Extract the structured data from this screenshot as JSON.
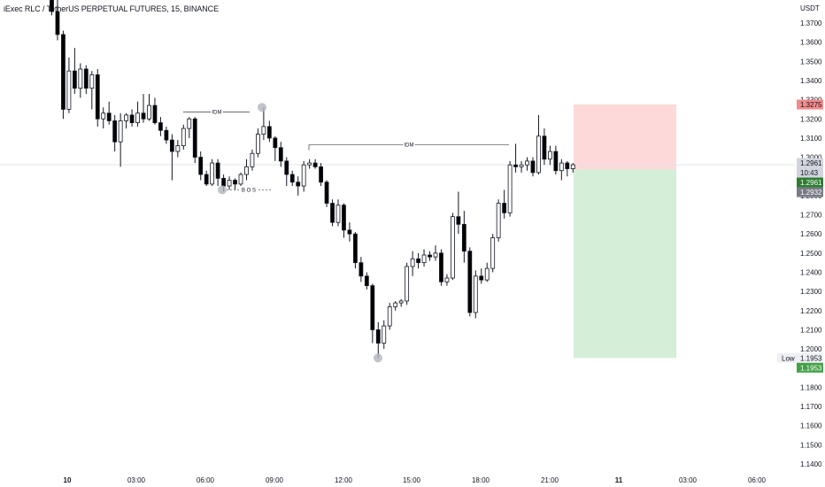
{
  "chart": {
    "title": "iExec RLC / TetherUS PERPETUAL FUTURES, 15, BINANCE",
    "currency": "USDT",
    "price_ticks": [
      "1.3700",
      "1.3600",
      "1.3500",
      "1.3400",
      "1.3300",
      "1.3200",
      "1.3100",
      "1.3000",
      "1.2900",
      "1.2800",
      "1.2700",
      "1.2600",
      "1.2500",
      "1.2400",
      "1.2300",
      "1.2200",
      "1.2100",
      "1.2000",
      "1.1900",
      "1.1800",
      "1.1700",
      "1.1600",
      "1.1500",
      "1.1400"
    ],
    "time_ticks": [
      {
        "label": "10",
        "bold": true
      },
      {
        "label": "03:00",
        "bold": false
      },
      {
        "label": "06:00",
        "bold": false
      },
      {
        "label": "09:00",
        "bold": false
      },
      {
        "label": "12:00",
        "bold": false
      },
      {
        "label": "15:00",
        "bold": false
      },
      {
        "label": "18:00",
        "bold": false
      },
      {
        "label": "21:00",
        "bold": false
      },
      {
        "label": "11",
        "bold": true
      },
      {
        "label": "03:00",
        "bold": false
      },
      {
        "label": "06:00",
        "bold": false
      }
    ],
    "tags": {
      "target": {
        "value": "1.3275",
        "bg": "#f28b8b",
        "fg": "#131722"
      },
      "last_price": {
        "value": "1.2961",
        "bg": "#d1d4dc",
        "fg": "#131722"
      },
      "countdown": {
        "value": "10:43",
        "bg": "#d1d4dc",
        "fg": "#131722"
      },
      "entry": {
        "value": "1.2961",
        "bg": "#2e7d32",
        "fg": "#ffffff"
      },
      "stop": {
        "value": "1.2932",
        "bg": "#787b86",
        "fg": "#ffffff"
      },
      "low_caption": "Low",
      "low_value": "1.1953",
      "low_tag": {
        "value": "1.1953",
        "bg": "#43a047",
        "fg": "#ffffff"
      }
    },
    "annotations": {
      "idm_1": "IDM",
      "bos": "B O S",
      "idm_2": "IDM"
    },
    "colors": {
      "bull": "#ffffff",
      "bear": "#000000",
      "wick": "#131722",
      "risk_zone": "#fdd9d9",
      "reward_zone": "#d5eed7",
      "marker": "#b2b5be"
    },
    "drawing": {
      "position_type": "short",
      "entry": 1.2936,
      "take_profit": 1.1953,
      "stop_loss": 1.3275
    }
  },
  "chart_data": {
    "type": "candlestick",
    "title": "iExec RLC / TetherUS PERPETUAL FUTURES, 15, BINANCE",
    "timeframe": "15",
    "ylim": [
      1.14,
      1.378
    ],
    "candles": [
      {
        "t": "09 23:45",
        "o": 1.385,
        "h": 1.39,
        "l": 1.374,
        "c": 1.376
      },
      {
        "t": "10 00:00",
        "o": 1.376,
        "h": 1.383,
        "l": 1.361,
        "c": 1.364
      },
      {
        "t": "10 00:15",
        "o": 1.364,
        "h": 1.366,
        "l": 1.32,
        "c": 1.325
      },
      {
        "t": "10 00:30",
        "o": 1.325,
        "h": 1.352,
        "l": 1.323,
        "c": 1.345
      },
      {
        "t": "10 00:45",
        "o": 1.345,
        "h": 1.357,
        "l": 1.333,
        "c": 1.336
      },
      {
        "t": "10 01:00",
        "o": 1.336,
        "h": 1.349,
        "l": 1.331,
        "c": 1.346
      },
      {
        "t": "10 01:15",
        "o": 1.346,
        "h": 1.348,
        "l": 1.333,
        "c": 1.336
      },
      {
        "t": "10 01:30",
        "o": 1.336,
        "h": 1.345,
        "l": 1.325,
        "c": 1.343
      },
      {
        "t": "10 01:45",
        "o": 1.343,
        "h": 1.346,
        "l": 1.316,
        "c": 1.32
      },
      {
        "t": "10 02:00",
        "o": 1.32,
        "h": 1.326,
        "l": 1.315,
        "c": 1.323
      },
      {
        "t": "10 02:15",
        "o": 1.323,
        "h": 1.329,
        "l": 1.317,
        "c": 1.319
      },
      {
        "t": "10 02:30",
        "o": 1.319,
        "h": 1.322,
        "l": 1.303,
        "c": 1.308
      },
      {
        "t": "10 02:45",
        "o": 1.308,
        "h": 1.323,
        "l": 1.295,
        "c": 1.319
      },
      {
        "t": "10 03:00",
        "o": 1.319,
        "h": 1.323,
        "l": 1.315,
        "c": 1.322
      },
      {
        "t": "10 03:15",
        "o": 1.322,
        "h": 1.325,
        "l": 1.316,
        "c": 1.318
      },
      {
        "t": "10 03:30",
        "o": 1.318,
        "h": 1.329,
        "l": 1.316,
        "c": 1.323
      },
      {
        "t": "10 03:45",
        "o": 1.323,
        "h": 1.333,
        "l": 1.318,
        "c": 1.32
      },
      {
        "t": "10 04:00",
        "o": 1.32,
        "h": 1.333,
        "l": 1.319,
        "c": 1.327
      },
      {
        "t": "10 04:15",
        "o": 1.327,
        "h": 1.331,
        "l": 1.317,
        "c": 1.318
      },
      {
        "t": "10 04:30",
        "o": 1.318,
        "h": 1.321,
        "l": 1.311,
        "c": 1.314
      },
      {
        "t": "10 04:45",
        "o": 1.314,
        "h": 1.316,
        "l": 1.307,
        "c": 1.309
      },
      {
        "t": "10 05:00",
        "o": 1.309,
        "h": 1.312,
        "l": 1.288,
        "c": 1.303
      },
      {
        "t": "10 05:15",
        "o": 1.303,
        "h": 1.309,
        "l": 1.3,
        "c": 1.306
      },
      {
        "t": "10 05:30",
        "o": 1.306,
        "h": 1.317,
        "l": 1.304,
        "c": 1.315
      },
      {
        "t": "10 05:45",
        "o": 1.315,
        "h": 1.321,
        "l": 1.31,
        "c": 1.32
      },
      {
        "t": "10 06:00",
        "o": 1.32,
        "h": 1.321,
        "l": 1.297,
        "c": 1.3
      },
      {
        "t": "10 06:15",
        "o": 1.3,
        "h": 1.303,
        "l": 1.288,
        "c": 1.291
      },
      {
        "t": "10 06:30",
        "o": 1.291,
        "h": 1.293,
        "l": 1.285,
        "c": 1.286
      },
      {
        "t": "10 06:45",
        "o": 1.286,
        "h": 1.299,
        "l": 1.285,
        "c": 1.297
      },
      {
        "t": "10 07:00",
        "o": 1.297,
        "h": 1.299,
        "l": 1.285,
        "c": 1.289
      },
      {
        "t": "10 07:15",
        "o": 1.289,
        "h": 1.291,
        "l": 1.282,
        "c": 1.285
      },
      {
        "t": "10 07:30",
        "o": 1.285,
        "h": 1.29,
        "l": 1.283,
        "c": 1.288
      },
      {
        "t": "10 07:45",
        "o": 1.288,
        "h": 1.289,
        "l": 1.283,
        "c": 1.286
      },
      {
        "t": "10 08:00",
        "o": 1.286,
        "h": 1.292,
        "l": 1.285,
        "c": 1.291
      },
      {
        "t": "10 08:15",
        "o": 1.291,
        "h": 1.299,
        "l": 1.288,
        "c": 1.295
      },
      {
        "t": "10 08:30",
        "o": 1.295,
        "h": 1.304,
        "l": 1.293,
        "c": 1.302
      },
      {
        "t": "10 08:45",
        "o": 1.302,
        "h": 1.315,
        "l": 1.3,
        "c": 1.312
      },
      {
        "t": "10 09:00",
        "o": 1.312,
        "h": 1.326,
        "l": 1.309,
        "c": 1.316
      },
      {
        "t": "10 09:15",
        "o": 1.316,
        "h": 1.319,
        "l": 1.308,
        "c": 1.31
      },
      {
        "t": "10 09:30",
        "o": 1.31,
        "h": 1.311,
        "l": 1.298,
        "c": 1.305
      },
      {
        "t": "10 09:45",
        "o": 1.305,
        "h": 1.308,
        "l": 1.295,
        "c": 1.298
      },
      {
        "t": "10 10:00",
        "o": 1.298,
        "h": 1.3,
        "l": 1.285,
        "c": 1.291
      },
      {
        "t": "10 10:15",
        "o": 1.291,
        "h": 1.293,
        "l": 1.285,
        "c": 1.287
      },
      {
        "t": "10 10:30",
        "o": 1.287,
        "h": 1.29,
        "l": 1.28,
        "c": 1.285
      },
      {
        "t": "10 10:45",
        "o": 1.285,
        "h": 1.298,
        "l": 1.282,
        "c": 1.296
      },
      {
        "t": "10 11:00",
        "o": 1.296,
        "h": 1.299,
        "l": 1.294,
        "c": 1.297
      },
      {
        "t": "10 11:15",
        "o": 1.297,
        "h": 1.299,
        "l": 1.294,
        "c": 1.295
      },
      {
        "t": "10 11:30",
        "o": 1.295,
        "h": 1.297,
        "l": 1.285,
        "c": 1.287
      },
      {
        "t": "10 11:45",
        "o": 1.287,
        "h": 1.288,
        "l": 1.274,
        "c": 1.276
      },
      {
        "t": "10 12:00",
        "o": 1.276,
        "h": 1.278,
        "l": 1.264,
        "c": 1.266
      },
      {
        "t": "10 12:15",
        "o": 1.266,
        "h": 1.278,
        "l": 1.264,
        "c": 1.275
      },
      {
        "t": "10 12:30",
        "o": 1.275,
        "h": 1.276,
        "l": 1.258,
        "c": 1.262
      },
      {
        "t": "10 12:45",
        "o": 1.262,
        "h": 1.266,
        "l": 1.256,
        "c": 1.26
      },
      {
        "t": "10 13:00",
        "o": 1.26,
        "h": 1.261,
        "l": 1.242,
        "c": 1.245
      },
      {
        "t": "10 13:15",
        "o": 1.245,
        "h": 1.248,
        "l": 1.235,
        "c": 1.238
      },
      {
        "t": "10 13:30",
        "o": 1.238,
        "h": 1.24,
        "l": 1.231,
        "c": 1.233
      },
      {
        "t": "10 13:45",
        "o": 1.233,
        "h": 1.234,
        "l": 1.203,
        "c": 1.21
      },
      {
        "t": "10 14:00",
        "o": 1.21,
        "h": 1.214,
        "l": 1.1953,
        "c": 1.203
      },
      {
        "t": "10 14:15",
        "o": 1.203,
        "h": 1.215,
        "l": 1.2,
        "c": 1.212
      },
      {
        "t": "10 14:30",
        "o": 1.212,
        "h": 1.224,
        "l": 1.21,
        "c": 1.222
      },
      {
        "t": "10 14:45",
        "o": 1.222,
        "h": 1.225,
        "l": 1.22,
        "c": 1.224
      },
      {
        "t": "10 15:00",
        "o": 1.224,
        "h": 1.226,
        "l": 1.222,
        "c": 1.225
      },
      {
        "t": "10 15:15",
        "o": 1.225,
        "h": 1.245,
        "l": 1.223,
        "c": 1.243
      },
      {
        "t": "10 15:30",
        "o": 1.243,
        "h": 1.251,
        "l": 1.238,
        "c": 1.247
      },
      {
        "t": "10 15:45",
        "o": 1.247,
        "h": 1.25,
        "l": 1.242,
        "c": 1.245
      },
      {
        "t": "10 16:00",
        "o": 1.245,
        "h": 1.252,
        "l": 1.243,
        "c": 1.249
      },
      {
        "t": "10 16:15",
        "o": 1.249,
        "h": 1.251,
        "l": 1.246,
        "c": 1.248
      },
      {
        "t": "10 16:30",
        "o": 1.248,
        "h": 1.254,
        "l": 1.246,
        "c": 1.25
      },
      {
        "t": "10 16:45",
        "o": 1.25,
        "h": 1.252,
        "l": 1.233,
        "c": 1.235
      },
      {
        "t": "10 17:00",
        "o": 1.235,
        "h": 1.239,
        "l": 1.233,
        "c": 1.237
      },
      {
        "t": "10 17:15",
        "o": 1.237,
        "h": 1.271,
        "l": 1.236,
        "c": 1.269
      },
      {
        "t": "10 17:30",
        "o": 1.269,
        "h": 1.282,
        "l": 1.26,
        "c": 1.265
      },
      {
        "t": "10 17:45",
        "o": 1.265,
        "h": 1.272,
        "l": 1.245,
        "c": 1.251
      },
      {
        "t": "10 18:00",
        "o": 1.251,
        "h": 1.253,
        "l": 1.217,
        "c": 1.219
      },
      {
        "t": "10 18:15",
        "o": 1.219,
        "h": 1.241,
        "l": 1.216,
        "c": 1.238
      },
      {
        "t": "10 18:30",
        "o": 1.238,
        "h": 1.242,
        "l": 1.234,
        "c": 1.236
      },
      {
        "t": "10 18:45",
        "o": 1.236,
        "h": 1.245,
        "l": 1.235,
        "c": 1.242
      },
      {
        "t": "10 19:00",
        "o": 1.242,
        "h": 1.26,
        "l": 1.24,
        "c": 1.258
      },
      {
        "t": "10 19:15",
        "o": 1.258,
        "h": 1.278,
        "l": 1.256,
        "c": 1.276
      },
      {
        "t": "10 19:30",
        "o": 1.276,
        "h": 1.283,
        "l": 1.268,
        "c": 1.271
      },
      {
        "t": "10 19:45",
        "o": 1.271,
        "h": 1.298,
        "l": 1.269,
        "c": 1.296
      },
      {
        "t": "10 20:00",
        "o": 1.296,
        "h": 1.307,
        "l": 1.292,
        "c": 1.295
      },
      {
        "t": "10 20:15",
        "o": 1.295,
        "h": 1.298,
        "l": 1.292,
        "c": 1.296
      },
      {
        "t": "10 20:30",
        "o": 1.296,
        "h": 1.3,
        "l": 1.293,
        "c": 1.298
      },
      {
        "t": "10 20:45",
        "o": 1.298,
        "h": 1.3,
        "l": 1.29,
        "c": 1.292
      },
      {
        "t": "10 21:00",
        "o": 1.292,
        "h": 1.322,
        "l": 1.291,
        "c": 1.311
      },
      {
        "t": "10 21:15",
        "o": 1.311,
        "h": 1.315,
        "l": 1.296,
        "c": 1.299
      },
      {
        "t": "10 21:30",
        "o": 1.299,
        "h": 1.306,
        "l": 1.296,
        "c": 1.303
      },
      {
        "t": "10 21:45",
        "o": 1.303,
        "h": 1.306,
        "l": 1.291,
        "c": 1.293
      },
      {
        "t": "10 22:00",
        "o": 1.293,
        "h": 1.299,
        "l": 1.288,
        "c": 1.297
      },
      {
        "t": "10 22:15",
        "o": 1.297,
        "h": 1.298,
        "l": 1.29,
        "c": 1.294
      },
      {
        "t": "10 22:30",
        "o": 1.294,
        "h": 1.297,
        "l": 1.292,
        "c": 1.2961
      }
    ]
  }
}
